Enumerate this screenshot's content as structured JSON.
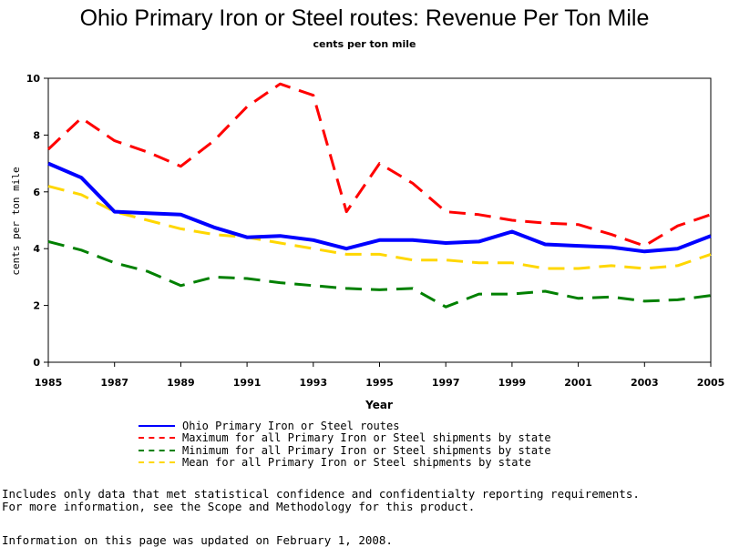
{
  "chart_data": {
    "type": "line",
    "title": "Ohio Primary Iron or Steel routes: Revenue Per Ton Mile",
    "subtitle": "cents per ton mile",
    "xlabel": "Year",
    "ylabel": "cents per ton mile",
    "x": [
      1985,
      1986,
      1987,
      1988,
      1989,
      1990,
      1991,
      1992,
      1993,
      1994,
      1995,
      1996,
      1997,
      1998,
      1999,
      2000,
      2001,
      2002,
      2003,
      2004,
      2005
    ],
    "xlim": [
      1985,
      2005
    ],
    "ylim": [
      0,
      10
    ],
    "x_ticks": [
      "1985",
      "1987",
      "1989",
      "1991",
      "1993",
      "1995",
      "1997",
      "1999",
      "2001",
      "2003",
      "2005"
    ],
    "y_ticks": [
      "0",
      "2",
      "4",
      "6",
      "8",
      "10"
    ],
    "grid": false,
    "legend_position": "bottom",
    "series": [
      {
        "name": "Ohio Primary Iron or Steel routes",
        "color": "#0000ff",
        "dash": "solid",
        "values": [
          7.0,
          6.5,
          5.3,
          5.25,
          5.2,
          4.75,
          4.4,
          4.45,
          4.3,
          4.0,
          4.3,
          4.3,
          4.2,
          4.25,
          4.6,
          4.15,
          4.1,
          4.05,
          3.9,
          4.0,
          4.45
        ]
      },
      {
        "name": "Maximum for all Primary Iron or Steel shipments by state",
        "color": "#ff0000",
        "dash": "dashed",
        "values": [
          7.5,
          8.6,
          7.8,
          7.4,
          6.9,
          7.8,
          9.0,
          9.8,
          9.4,
          5.3,
          7.0,
          6.3,
          5.3,
          5.2,
          5.0,
          4.9,
          4.85,
          4.5,
          4.1,
          4.8,
          5.2
        ]
      },
      {
        "name": "Minimum for all Primary Iron or Steel shipments by state",
        "color": "#008000",
        "dash": "dashed",
        "values": [
          4.25,
          3.95,
          3.5,
          3.2,
          2.7,
          3.0,
          2.95,
          2.8,
          2.7,
          2.6,
          2.55,
          2.6,
          1.95,
          2.4,
          2.4,
          2.5,
          2.25,
          2.3,
          2.15,
          2.2,
          2.35
        ]
      },
      {
        "name": "Mean for all Primary Iron or Steel shipments by state",
        "color": "#ffd700",
        "dash": "dashed",
        "values": [
          6.2,
          5.9,
          5.3,
          5.0,
          4.7,
          4.5,
          4.4,
          4.2,
          4.0,
          3.8,
          3.8,
          3.6,
          3.6,
          3.5,
          3.5,
          3.3,
          3.3,
          3.4,
          3.3,
          3.4,
          3.8
        ]
      }
    ]
  },
  "footnotes": {
    "line1": "Includes only data that met statistical confidence and confidentialty reporting requirements.",
    "line2": "For more information, see the Scope and Methodology for this product.",
    "line3": "Information on this page was updated on February 1, 2008."
  }
}
